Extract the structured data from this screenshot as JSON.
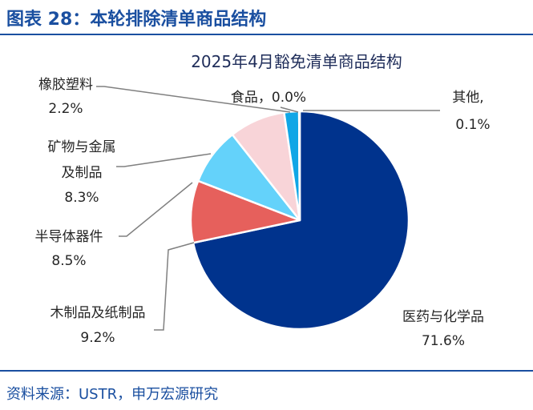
{
  "figure": {
    "title": "图表 28：本轮排除清单商品结构",
    "source": "资料来源：USTR，申万宏源研究"
  },
  "chart_data": {
    "type": "pie",
    "title": "2025年4月豁免清单商品结构",
    "slices": [
      {
        "name": "医药与化学品",
        "value": 71.6,
        "label": "71.6%",
        "color": "#00338d"
      },
      {
        "name": "木制品及纸制品",
        "value": 9.2,
        "label": "9.2%",
        "color": "#e6605c"
      },
      {
        "name": "半导体器件",
        "value": 8.5,
        "label": "8.5%",
        "color": "#64d2fa"
      },
      {
        "name": "矿物与金属及制品",
        "value": 8.3,
        "label": "8.3%",
        "color": "#f8d4d8"
      },
      {
        "name": "橡胶塑料",
        "value": 2.2,
        "label": "2.2%",
        "color": "#10a6e6"
      },
      {
        "name": "食品",
        "value": 0.0,
        "label": "0.0%",
        "color": "#7a9a3a"
      },
      {
        "name": "其他",
        "value": 0.1,
        "label": "0.1%",
        "color": "#b0b0b0"
      }
    ],
    "label_texts": {
      "pharma_name": "医药与化学品",
      "pharma_pct": "71.6%",
      "wood_name": "木制品及纸制品",
      "wood_pct": "9.2%",
      "semi_name": "半导体器件",
      "semi_pct": "8.5%",
      "mineral_name_1": "矿物与金属",
      "mineral_name_2": "及制品",
      "mineral_pct": "8.3%",
      "rubber_name": "橡胶塑料",
      "rubber_pct": "2.2%",
      "food_label": "食品，0.0%",
      "other_name": "其他,",
      "other_pct": "0.1%"
    }
  }
}
